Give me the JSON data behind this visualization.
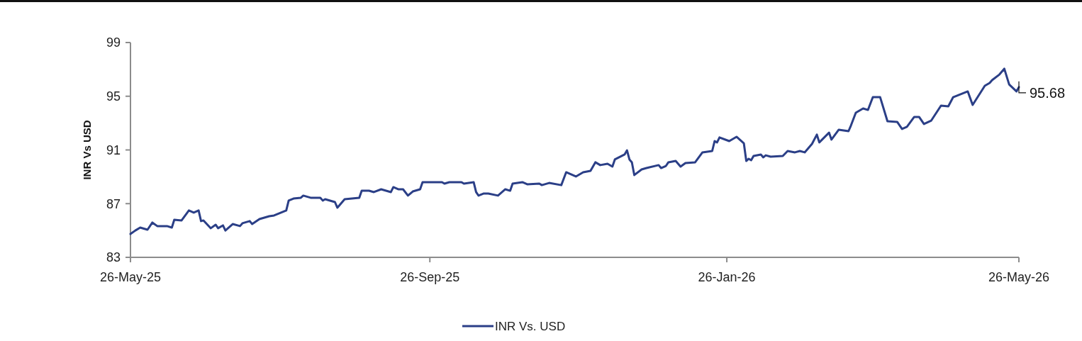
{
  "chart_data": {
    "type": "line",
    "ylabel": "INR Vs USD",
    "legend": "bottom",
    "grid": false,
    "marker": "none",
    "line_style": "solid",
    "xlim": [
      "2025-05-26",
      "2026-05-26"
    ],
    "ylim": [
      83,
      99
    ],
    "yticks": [
      83,
      87,
      91,
      95,
      99
    ],
    "xticks": [
      {
        "value": "2025-05-26",
        "label": "26-May-25"
      },
      {
        "value": "2025-09-26",
        "label": "26-Sep-25"
      },
      {
        "value": "2026-01-26",
        "label": "26-Jan-26"
      },
      {
        "value": "2026-05-26",
        "label": "26-May-26"
      }
    ],
    "annotations": [
      {
        "text": "95.68",
        "x": "2026-05-26",
        "y": 95.68
      }
    ],
    "series": [
      {
        "name": "INR Vs. USD",
        "color": "#2b3f87",
        "x": [
          "2025-05-26",
          "2025-05-28",
          "2025-05-30",
          "2025-06-02",
          "2025-06-04",
          "2025-06-06",
          "2025-06-10",
          "2025-06-12",
          "2025-06-13",
          "2025-06-16",
          "2025-06-19",
          "2025-06-21",
          "2025-06-23",
          "2025-06-24",
          "2025-06-25",
          "2025-06-28",
          "2025-06-30",
          "2025-07-01",
          "2025-07-03",
          "2025-07-04",
          "2025-07-07",
          "2025-07-10",
          "2025-07-11",
          "2025-07-14",
          "2025-07-15",
          "2025-07-18",
          "2025-07-22",
          "2025-07-24",
          "2025-07-29",
          "2025-07-30",
          "2025-08-01",
          "2025-08-04",
          "2025-08-05",
          "2025-08-08",
          "2025-08-12",
          "2025-08-13",
          "2025-08-14",
          "2025-08-18",
          "2025-08-19",
          "2025-08-22",
          "2025-08-25",
          "2025-08-28",
          "2025-08-29",
          "2025-09-01",
          "2025-09-03",
          "2025-09-06",
          "2025-09-10",
          "2025-09-11",
          "2025-09-13",
          "2025-09-15",
          "2025-09-17",
          "2025-09-19",
          "2025-09-22",
          "2025-09-23",
          "2025-09-27",
          "2025-10-01",
          "2025-10-02",
          "2025-10-04",
          "2025-10-09",
          "2025-10-10",
          "2025-10-14",
          "2025-10-15",
          "2025-10-16",
          "2025-10-18",
          "2025-10-20",
          "2025-10-24",
          "2025-10-27",
          "2025-10-29",
          "2025-10-30",
          "2025-11-03",
          "2025-11-05",
          "2025-11-10",
          "2025-11-11",
          "2025-11-14",
          "2025-11-19",
          "2025-11-21",
          "2025-11-25",
          "2025-11-28",
          "2025-12-01",
          "2025-12-03",
          "2025-12-05",
          "2025-12-08",
          "2025-12-10",
          "2025-12-11",
          "2025-12-15",
          "2025-12-16",
          "2025-12-17",
          "2025-12-18",
          "2025-12-19",
          "2025-12-22",
          "2025-12-24",
          "2025-12-29",
          "2025-12-30",
          "2026-01-01",
          "2026-01-02",
          "2026-01-05",
          "2026-01-07",
          "2026-01-09",
          "2026-01-13",
          "2026-01-16",
          "2026-01-20",
          "2026-01-21",
          "2026-01-22",
          "2026-01-23",
          "2026-01-27",
          "2026-01-30",
          "2026-02-02",
          "2026-02-03",
          "2026-02-04",
          "2026-02-05",
          "2026-02-06",
          "2026-02-09",
          "2026-02-10",
          "2026-02-11",
          "2026-02-13",
          "2026-02-18",
          "2026-02-20",
          "2026-02-23",
          "2026-02-25",
          "2026-02-27",
          "2026-03-02",
          "2026-03-04",
          "2026-03-05",
          "2026-03-09",
          "2026-03-10",
          "2026-03-13",
          "2026-03-17",
          "2026-03-18",
          "2026-03-20",
          "2026-03-23",
          "2026-03-25",
          "2026-03-27",
          "2026-03-30",
          "2026-04-02",
          "2026-04-06",
          "2026-04-08",
          "2026-04-10",
          "2026-04-13",
          "2026-04-15",
          "2026-04-17",
          "2026-04-20",
          "2026-04-24",
          "2026-04-27",
          "2026-04-29",
          "2026-05-05",
          "2026-05-07",
          "2026-05-12",
          "2026-05-14",
          "2026-05-15",
          "2026-05-18",
          "2026-05-20",
          "2026-05-22",
          "2026-05-25",
          "2026-05-26"
        ],
        "values": [
          84.74,
          85.0,
          85.22,
          85.06,
          85.59,
          85.33,
          85.33,
          85.22,
          85.8,
          85.75,
          86.49,
          86.33,
          86.49,
          85.7,
          85.75,
          85.17,
          85.43,
          85.17,
          85.38,
          85.0,
          85.48,
          85.33,
          85.54,
          85.7,
          85.48,
          85.85,
          86.06,
          86.12,
          86.49,
          87.23,
          87.38,
          87.44,
          87.6,
          87.44,
          87.44,
          87.23,
          87.33,
          87.12,
          86.7,
          87.33,
          87.38,
          87.44,
          87.96,
          87.96,
          87.86,
          88.07,
          87.86,
          88.23,
          88.07,
          88.07,
          87.6,
          87.91,
          88.07,
          88.6,
          88.6,
          88.6,
          88.49,
          88.6,
          88.6,
          88.49,
          88.6,
          87.86,
          87.6,
          87.75,
          87.75,
          87.6,
          88.07,
          87.96,
          88.49,
          88.6,
          88.44,
          88.49,
          88.38,
          88.54,
          88.38,
          89.34,
          89.02,
          89.34,
          89.44,
          90.08,
          89.87,
          89.97,
          89.76,
          90.29,
          90.66,
          90.97,
          90.29,
          90.08,
          89.13,
          89.55,
          89.65,
          89.87,
          89.65,
          89.81,
          90.08,
          90.18,
          89.76,
          90.02,
          90.08,
          90.82,
          90.92,
          91.66,
          91.56,
          91.93,
          91.66,
          91.98,
          91.5,
          90.18,
          90.34,
          90.23,
          90.55,
          90.66,
          90.45,
          90.6,
          90.5,
          90.55,
          90.92,
          90.82,
          90.92,
          90.82,
          91.45,
          92.14,
          91.56,
          92.29,
          91.77,
          92.51,
          92.4,
          92.82,
          93.77,
          94.09,
          93.98,
          94.93,
          94.93,
          93.14,
          93.09,
          92.56,
          92.72,
          93.46,
          93.46,
          92.93,
          93.19,
          94.3,
          94.25,
          94.93,
          95.36,
          94.35,
          95.78,
          95.99,
          96.2,
          96.62,
          97.05,
          95.88,
          95.36,
          95.68
        ]
      }
    ]
  }
}
